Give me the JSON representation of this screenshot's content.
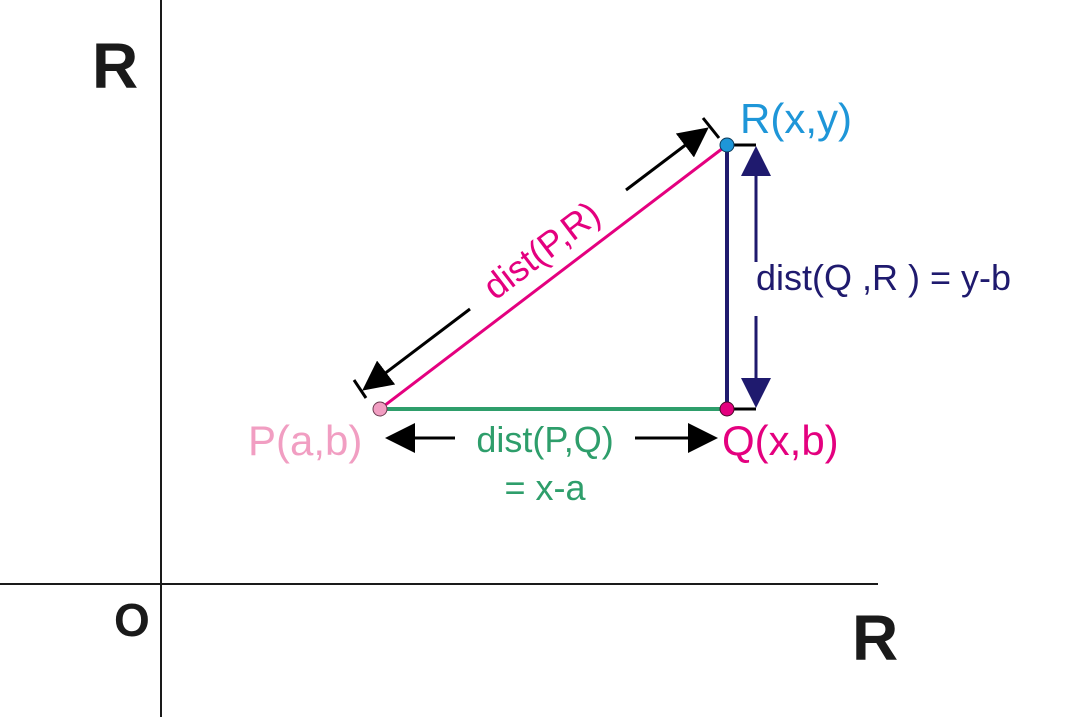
{
  "axes": {
    "y_axis_label": "R",
    "x_axis_label": "R",
    "origin_label": "O"
  },
  "points": {
    "P": {
      "label": "P(a,b)",
      "color": "#f19ec2"
    },
    "Q": {
      "label": "Q(x,b)",
      "color": "#e4007f"
    },
    "R": {
      "label": "R(x,y)",
      "color": "#1e96d8"
    }
  },
  "segments": {
    "PR": {
      "label": "dist(P,R)",
      "color": "#e4007f"
    },
    "PQ": {
      "label_line1": "dist(P,Q)",
      "label_line2": "= x-a",
      "color": "#2e9e6b"
    },
    "QR": {
      "label": "dist(Q ,R ) = y-b",
      "color": "#1f1a6e"
    }
  },
  "colors": {
    "axis": "#1a1a1a",
    "arrow": "#000000"
  }
}
